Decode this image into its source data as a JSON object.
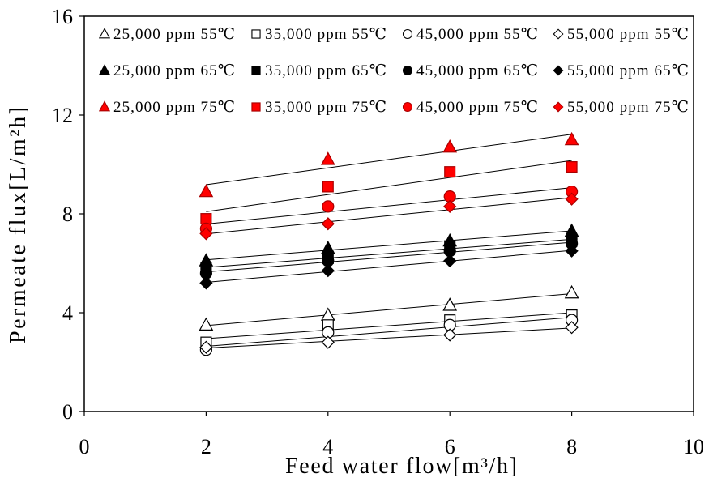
{
  "chart_data": {
    "type": "scatter",
    "xlabel": "Feed water flow[m³/h]",
    "ylabel": "Permeate flux[L/m²h]",
    "xlim": [
      0,
      10
    ],
    "ylim": [
      0,
      16
    ],
    "xticks": [
      0,
      2,
      4,
      6,
      8,
      10
    ],
    "yticks": [
      0,
      4,
      8,
      12,
      16
    ],
    "grid": false,
    "trendlines": true,
    "legend_position": "top",
    "x": [
      2,
      4,
      6,
      8
    ],
    "series": [
      {
        "name": "25,000 ppm 55℃",
        "marker": "triangle",
        "fill": "none",
        "stroke": "#000000",
        "values": [
          3.5,
          3.9,
          4.3,
          4.8
        ]
      },
      {
        "name": "35,000 ppm 55℃",
        "marker": "square",
        "fill": "none",
        "stroke": "#000000",
        "values": [
          2.8,
          3.5,
          3.7,
          3.9
        ]
      },
      {
        "name": "45,000 ppm 55℃",
        "marker": "circle",
        "fill": "none",
        "stroke": "#000000",
        "values": [
          2.5,
          3.2,
          3.5,
          3.7
        ]
      },
      {
        "name": "55,000 ppm 55℃",
        "marker": "diamond",
        "fill": "none",
        "stroke": "#000000",
        "values": [
          2.6,
          2.8,
          3.1,
          3.4
        ]
      },
      {
        "name": "25,000 ppm 65℃",
        "marker": "triangle",
        "fill": "#000000",
        "stroke": "#000000",
        "values": [
          6.1,
          6.6,
          6.9,
          7.3
        ]
      },
      {
        "name": "35,000 ppm 65℃",
        "marker": "square",
        "fill": "#000000",
        "stroke": "#000000",
        "values": [
          5.8,
          6.2,
          6.7,
          6.9
        ]
      },
      {
        "name": "45,000 ppm 65℃",
        "marker": "circle",
        "fill": "#000000",
        "stroke": "#000000",
        "values": [
          5.6,
          6.1,
          6.5,
          6.8
        ]
      },
      {
        "name": "55,000 ppm 65℃",
        "marker": "diamond",
        "fill": "#000000",
        "stroke": "#000000",
        "values": [
          5.2,
          5.7,
          6.1,
          6.5
        ]
      },
      {
        "name": "25,000 ppm 75℃",
        "marker": "triangle",
        "fill": "#ff0000",
        "stroke": "#a80000",
        "values": [
          8.9,
          10.2,
          10.7,
          11.0
        ]
      },
      {
        "name": "35,000 ppm 75℃",
        "marker": "square",
        "fill": "#ff0000",
        "stroke": "#a80000",
        "values": [
          7.8,
          9.1,
          9.7,
          9.9
        ]
      },
      {
        "name": "45,000 ppm 75℃",
        "marker": "circle",
        "fill": "#ff0000",
        "stroke": "#a80000",
        "values": [
          7.4,
          8.3,
          8.7,
          8.9
        ]
      },
      {
        "name": "55,000 ppm 75℃",
        "marker": "diamond",
        "fill": "#ff0000",
        "stroke": "#a80000",
        "values": [
          7.2,
          7.6,
          8.3,
          8.6
        ]
      }
    ]
  }
}
